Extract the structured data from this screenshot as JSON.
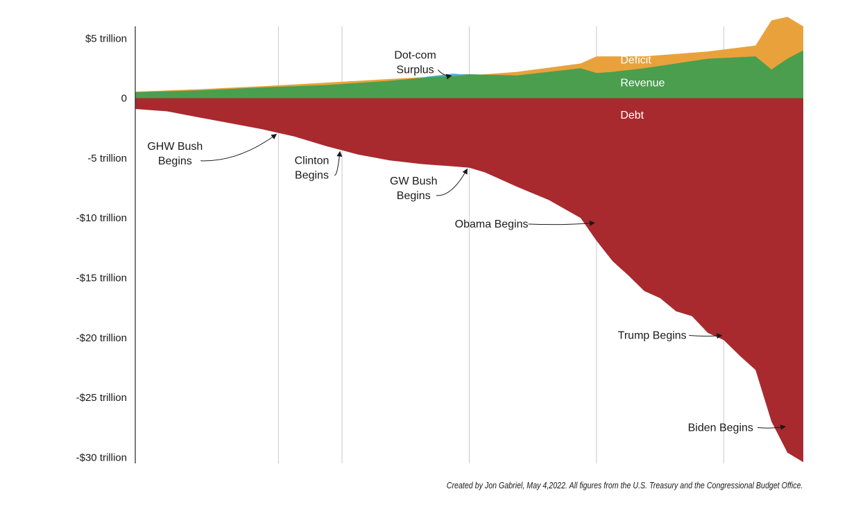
{
  "chart_data": {
    "type": "area",
    "title": "",
    "xlabel": "",
    "ylabel": "",
    "y_unit": "trillion USD",
    "ylim": [
      -30.5,
      6
    ],
    "xlim": [
      1980,
      2022
    ],
    "y_ticks": [
      {
        "value": 5,
        "label": "$5 trillion"
      },
      {
        "value": 0,
        "label": "0"
      },
      {
        "value": -5,
        "label": "-5 trillion"
      },
      {
        "value": -10,
        "label": "-$10 trillion"
      },
      {
        "value": -15,
        "label": "-$15 trillion"
      },
      {
        "value": -20,
        "label": "-$20 trillion"
      },
      {
        "value": -25,
        "label": "-$25 trillion"
      },
      {
        "value": -30,
        "label": "-$30 trillion"
      }
    ],
    "grid": "vertical lines at start of presidencies",
    "vertical_lines": [
      1989,
      1993,
      2001,
      2009,
      2017
    ],
    "series": [
      {
        "name": "Deficit",
        "color": "#e9a23b",
        "note": "stacked on top of Revenue; values are revenue + deficit (total outlays)",
        "x": [
          1980,
          1984,
          1988,
          1992,
          1996,
          1998,
          2000,
          2001,
          2004,
          2008,
          2009,
          2010,
          2012,
          2016,
          2019,
          2020,
          2021,
          2022
        ],
        "values": [
          0.55,
          0.75,
          1.0,
          1.3,
          1.6,
          1.75,
          1.85,
          1.9,
          2.2,
          2.9,
          3.5,
          3.5,
          3.5,
          3.9,
          4.4,
          6.5,
          6.8,
          6.0
        ]
      },
      {
        "name": "Revenue",
        "color": "#4a9e4e",
        "x": [
          1980,
          1984,
          1988,
          1992,
          1996,
          1998,
          2000,
          2001,
          2004,
          2008,
          2009,
          2010,
          2012,
          2016,
          2019,
          2020,
          2021,
          2022
        ],
        "values": [
          0.5,
          0.65,
          0.9,
          1.1,
          1.45,
          1.7,
          2.0,
          2.0,
          1.9,
          2.5,
          2.1,
          2.2,
          2.5,
          3.3,
          3.5,
          2.4,
          3.3,
          4.0
        ]
      },
      {
        "name": "Debt",
        "color": "#a82a2e",
        "x": [
          1980,
          1982,
          1984,
          1986,
          1988,
          1989,
          1990,
          1992,
          1993,
          1994,
          1996,
          1998,
          2000,
          2001,
          2002,
          2004,
          2006,
          2008,
          2009,
          2010,
          2011,
          2012,
          2013,
          2014,
          2015,
          2016,
          2017,
          2018,
          2019,
          2020,
          2021,
          2022
        ],
        "values": [
          -0.9,
          -1.1,
          -1.6,
          -2.1,
          -2.6,
          -2.9,
          -3.2,
          -4.0,
          -4.35,
          -4.7,
          -5.2,
          -5.5,
          -5.7,
          -5.8,
          -6.2,
          -7.4,
          -8.5,
          -10.0,
          -11.9,
          -13.6,
          -14.8,
          -16.1,
          -16.7,
          -17.8,
          -18.2,
          -19.6,
          -20.2,
          -21.5,
          -22.7,
          -27.0,
          -29.6,
          -30.4
        ]
      }
    ],
    "area_labels": [
      {
        "text": "Deficit",
        "series": "Deficit",
        "x": 2010.5,
        "y": 2.9
      },
      {
        "text": "Revenue",
        "series": "Revenue",
        "x": 2010.5,
        "y": 1.0
      },
      {
        "text": "Debt",
        "series": "Debt",
        "x": 2010.5,
        "y": -1.7
      }
    ],
    "annotations": [
      {
        "lines": [
          "Dot-com",
          "Surplus"
        ],
        "target": [
          2000,
          2.0
        ],
        "text_at": [
          1997.6,
          3.3
        ]
      },
      {
        "lines": [
          "GHW Bush",
          "Begins"
        ],
        "target": [
          1989,
          -2.9
        ],
        "text_at": [
          1982.5,
          -4.3
        ]
      },
      {
        "lines": [
          "Clinton",
          "Begins"
        ],
        "target": [
          1993,
          -4.35
        ],
        "text_at": [
          1991.1,
          -5.5
        ]
      },
      {
        "lines": [
          "GW Bush",
          "Begins"
        ],
        "target": [
          2001,
          -5.8
        ],
        "text_at": [
          1997.5,
          -7.2
        ]
      },
      {
        "lines": [
          "Obama Begins"
        ],
        "target": [
          2009,
          -10.3
        ],
        "text_at": [
          2002.4,
          -10.8
        ]
      },
      {
        "lines": [
          "Trump Begins"
        ],
        "target": [
          2017,
          -19.7
        ],
        "text_at": [
          2012.5,
          -20.1
        ]
      },
      {
        "lines": [
          "Biden Begins"
        ],
        "target": [
          2021,
          -27.3
        ],
        "text_at": [
          2016.8,
          -27.8
        ]
      }
    ]
  },
  "credit": "Created by Jon Gabriel, May 4,2022. All figures from the U.S. Treasury and the Congressional Budget Office."
}
